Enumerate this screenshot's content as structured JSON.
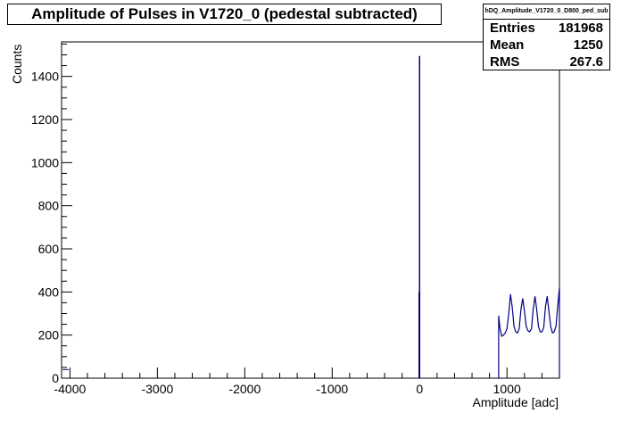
{
  "title": "Amplitude of Pulses in V1720_0 (pedestal subtracted)",
  "stats": {
    "name": "hDQ_Amplitude_V1720_0_D800_ped_sub",
    "rows": [
      {
        "label": "Entries",
        "value": "181968"
      },
      {
        "label": "Mean",
        "value": "1250"
      },
      {
        "label": "RMS",
        "value": "267.6"
      }
    ]
  },
  "colors": {
    "line": "#000080",
    "axis": "#000000"
  },
  "chart_data": {
    "type": "line",
    "title": "Amplitude of Pulses in V1720_0 (pedestal subtracted)",
    "xlabel": "Amplitude [adc]",
    "ylabel": "Counts",
    "xlim": [
      -4096,
      1600
    ],
    "ylim": [
      0,
      1560
    ],
    "xticks": [
      -4000,
      -3000,
      -2000,
      -1000,
      0,
      1000
    ],
    "yticks": [
      0,
      200,
      400,
      600,
      800,
      1000,
      1200,
      1400
    ],
    "grid": false,
    "spikes": [
      {
        "x": -5,
        "y": 400
      },
      {
        "x": 0,
        "y": 1495
      }
    ],
    "series": [
      {
        "x": [
          905,
          920,
          940,
          960,
          980,
          1000,
          1020,
          1040,
          1060,
          1080,
          1100,
          1120,
          1140,
          1160,
          1180,
          1200,
          1220,
          1240,
          1260,
          1280,
          1300,
          1320,
          1340,
          1360,
          1380,
          1400,
          1420,
          1440,
          1460,
          1480,
          1500,
          1520,
          1540,
          1560,
          1580,
          1600
        ],
        "values": [
          290,
          230,
          195,
          200,
          210,
          230,
          300,
          390,
          330,
          240,
          215,
          210,
          230,
          320,
          370,
          310,
          240,
          220,
          215,
          230,
          320,
          380,
          320,
          240,
          215,
          215,
          235,
          330,
          380,
          310,
          240,
          210,
          215,
          240,
          330,
          420
        ]
      }
    ]
  }
}
